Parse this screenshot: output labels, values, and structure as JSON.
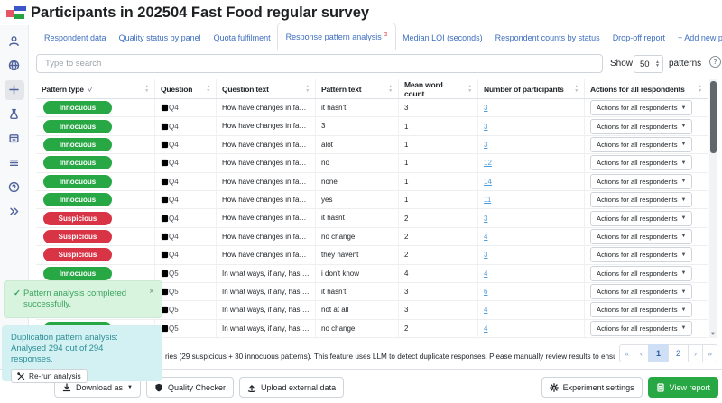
{
  "header": {
    "title": "Participants in 202504 Fast Food regular survey"
  },
  "sidebar": {
    "icons": [
      {
        "name": "user-icon"
      },
      {
        "name": "globe-icon"
      },
      {
        "name": "plus-icon",
        "active": true
      },
      {
        "name": "flask-icon"
      },
      {
        "name": "archive-icon"
      },
      {
        "name": "menu-icon"
      },
      {
        "name": "help-icon"
      },
      {
        "name": "expand-icon"
      }
    ]
  },
  "tabs": {
    "items": [
      {
        "label": "Respondent data"
      },
      {
        "label": "Quality status by panel"
      },
      {
        "label": "Quota fulfilment"
      },
      {
        "label": "Response pattern analysis",
        "badge": "α",
        "active": true
      },
      {
        "label": "Median LOI (seconds)"
      },
      {
        "label": "Respondent counts by status"
      },
      {
        "label": "Drop-off report"
      },
      {
        "label": "+ Add new pivot"
      }
    ]
  },
  "toolbar": {
    "search_placeholder": "Type to search",
    "show_label": "Show",
    "page_size_value": "50",
    "patterns_label": "patterns",
    "help_symbol": "?"
  },
  "table": {
    "actions_label": "Actions for all respondents",
    "columns": [
      {
        "label": "Pattern type",
        "filter": true,
        "sort": "both"
      },
      {
        "label": "Question",
        "sort": "asc"
      },
      {
        "label": "Question text",
        "sort": "both"
      },
      {
        "label": "Pattern text",
        "sort": "both"
      },
      {
        "label": "Mean word count",
        "sort": "both"
      },
      {
        "label": "Number of participants",
        "sort": "both"
      },
      {
        "label": "Actions for all respondents",
        "sort": "none"
      }
    ],
    "rows": [
      {
        "type": "Innocuous",
        "question": "Q4",
        "question_text": "How have changes in fast food prices ove...",
        "pattern_text": "it hasn't",
        "mean_word_count": "3",
        "participants": "3"
      },
      {
        "type": "Innocuous",
        "question": "Q4",
        "question_text": "How have changes in fast food prices ove...",
        "pattern_text": "3",
        "mean_word_count": "1",
        "participants": "3"
      },
      {
        "type": "Innocuous",
        "question": "Q4",
        "question_text": "How have changes in fast food prices ove...",
        "pattern_text": "alot",
        "mean_word_count": "1",
        "participants": "3"
      },
      {
        "type": "Innocuous",
        "question": "Q4",
        "question_text": "How have changes in fast food prices ove...",
        "pattern_text": "no",
        "mean_word_count": "1",
        "participants": "12"
      },
      {
        "type": "Innocuous",
        "question": "Q4",
        "question_text": "How have changes in fast food prices ove...",
        "pattern_text": "none",
        "mean_word_count": "1",
        "participants": "14"
      },
      {
        "type": "Innocuous",
        "question": "Q4",
        "question_text": "How have changes in fast food prices ove...",
        "pattern_text": "yes",
        "mean_word_count": "1",
        "participants": "11"
      },
      {
        "type": "Suspicious",
        "question": "Q4",
        "question_text": "How have changes in fast food prices ove...",
        "pattern_text": "it hasnt",
        "mean_word_count": "2",
        "participants": "3"
      },
      {
        "type": "Suspicious",
        "question": "Q4",
        "question_text": "How have changes in fast food prices ove...",
        "pattern_text": "no change",
        "mean_word_count": "2",
        "participants": "4"
      },
      {
        "type": "Suspicious",
        "question": "Q4",
        "question_text": "How have changes in fast food prices ove...",
        "pattern_text": "they havent",
        "mean_word_count": "2",
        "participants": "3"
      },
      {
        "type": "Innocuous",
        "question": "Q5",
        "question_text": "In what ways, if any, has your personal ...",
        "pattern_text": "i don't know",
        "mean_word_count": "4",
        "participants": "4"
      },
      {
        "type": "Innocuous",
        "question": "Q5",
        "question_text": "In what ways, if any, has your personal ...",
        "pattern_text": "it hasn't",
        "mean_word_count": "3",
        "participants": "6"
      },
      {
        "type": "Innocuous",
        "question": "Q5",
        "question_text": "In what ways, if any, has your personal ...",
        "pattern_text": "not at all",
        "mean_word_count": "3",
        "participants": "4"
      },
      {
        "type": "Innocuous",
        "question": "Q5",
        "question_text": "In what ways, if any, has your personal ...",
        "pattern_text": "no change",
        "mean_word_count": "2",
        "participants": "4"
      }
    ]
  },
  "toasts": {
    "success": {
      "icon": "check-icon",
      "text": "Pattern analysis completed successfully.",
      "close_icon": "close-icon"
    },
    "info": {
      "text": "Duplication pattern analysis: Analysed 294 out of 294 responses.",
      "button_label": "Re-run analysis",
      "button_icon": "tools-icon"
    }
  },
  "footer": {
    "note": "ries (29 suspicious + 30 innocuous patterns). This feature uses LLM to detect duplicate responses. Please manually review results to ensure accuracy."
  },
  "pagination": {
    "items": [
      {
        "label": "«",
        "kind": "arrow"
      },
      {
        "label": "‹",
        "kind": "arrow"
      },
      {
        "label": "1",
        "kind": "num",
        "active": true
      },
      {
        "label": "2",
        "kind": "num"
      },
      {
        "label": "›",
        "kind": "arrow"
      },
      {
        "label": "»",
        "kind": "arrow"
      }
    ]
  },
  "bottom_bar": {
    "download_label": "Download as",
    "quality_label": "Quality Checker",
    "upload_label": "Upload external data",
    "experiment_label": "Experiment settings",
    "view_report_label": "View report"
  },
  "colors": {
    "accent_blue": "#3d6ebf",
    "link_blue": "#4f9cdb",
    "success_green": "#28a745",
    "danger_red": "#d93446",
    "toast_green_bg": "#d8f3de",
    "toast_teal_bg": "#d3f0f2",
    "border_gray": "#dee2e6"
  }
}
